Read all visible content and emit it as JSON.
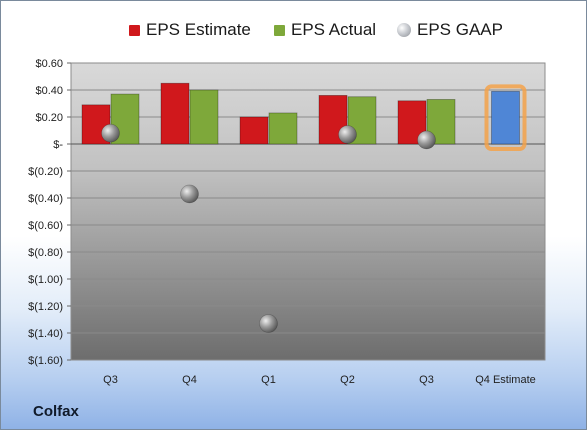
{
  "brand": "Colfax",
  "legend": [
    {
      "label": "EPS Estimate",
      "color": "#d0181c",
      "kind": "bar"
    },
    {
      "label": "EPS Actual",
      "color": "#7ea83a",
      "kind": "bar"
    },
    {
      "label": "EPS GAAP",
      "color": "#a0a4aa",
      "kind": "dot"
    }
  ],
  "chart_data": {
    "type": "bar",
    "categories": [
      "Q3",
      "Q4",
      "Q1",
      "Q2",
      "Q3",
      "Q4 Estimate"
    ],
    "series": [
      {
        "name": "EPS Estimate",
        "values": [
          0.29,
          0.45,
          0.2,
          0.36,
          0.32,
          null
        ],
        "color": "#d0181c"
      },
      {
        "name": "EPS Actual",
        "values": [
          0.37,
          0.4,
          0.23,
          0.35,
          0.33,
          null
        ],
        "color": "#7ea83a"
      },
      {
        "name": "EPS GAAP",
        "values": [
          0.08,
          -0.37,
          -1.33,
          0.07,
          0.03,
          null
        ],
        "color": "#a0a4aa",
        "style": "marker"
      },
      {
        "name": "Q4 Estimate",
        "values": [
          null,
          null,
          null,
          null,
          null,
          0.39
        ],
        "color": "#4f86d6",
        "highlight": "#f3a24a"
      }
    ],
    "ylim": [
      -1.6,
      0.6
    ],
    "yticks": [
      0.6,
      0.4,
      0.2,
      0,
      -0.2,
      -0.4,
      -0.6,
      -0.8,
      -1.0,
      -1.2,
      -1.4,
      -1.6
    ],
    "ytick_labels": [
      "$0.60",
      "$0.40",
      "$0.20",
      "$-",
      "$(0.20)",
      "$(0.40)",
      "$(0.60)",
      "$(0.80)",
      "$(1.00)",
      "$(1.20)",
      "$(1.40)",
      "$(1.60)"
    ],
    "grid": true,
    "legend_position": "top"
  }
}
